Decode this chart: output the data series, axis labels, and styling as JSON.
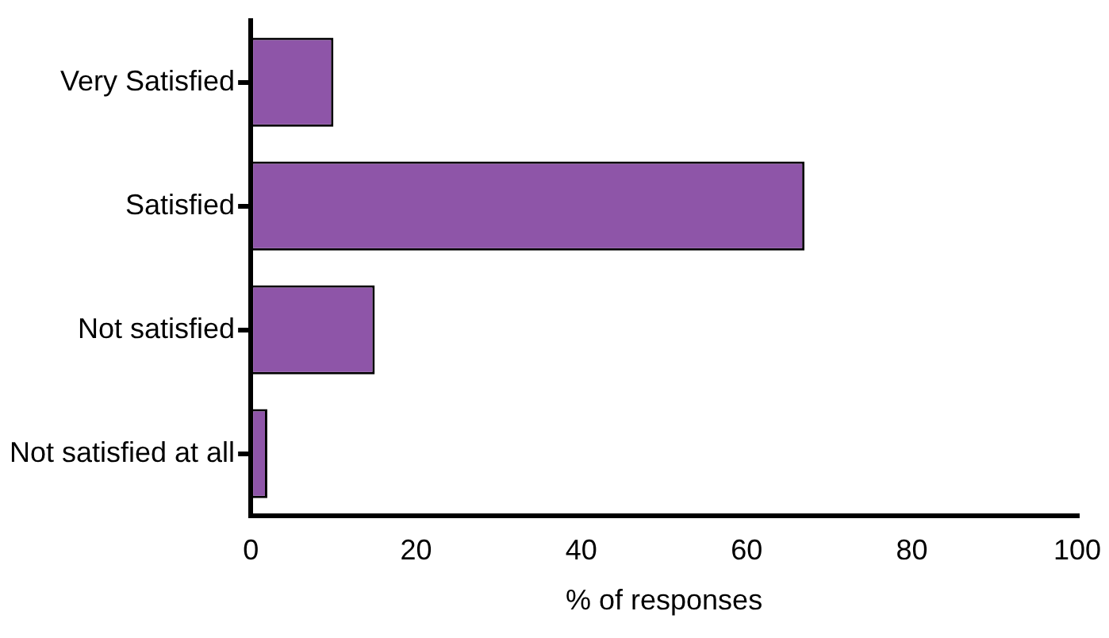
{
  "chart_data": {
    "type": "bar",
    "orientation": "horizontal",
    "xlabel": "% of responses",
    "categories": [
      "Very Satisfied",
      "Satisfied",
      "Not satisfied",
      "Not satisfied at all"
    ],
    "values": [
      10,
      67,
      15,
      2
    ],
    "color": "#8e55a8",
    "xlim": [
      0,
      100
    ],
    "xticks": [
      0,
      20,
      40,
      60,
      80,
      100
    ],
    "grid": false,
    "legend": false
  }
}
